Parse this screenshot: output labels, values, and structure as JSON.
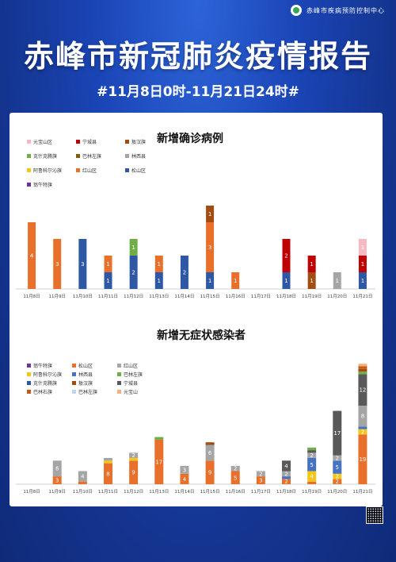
{
  "header": {
    "agency": "赤峰市疾病预防控制中心",
    "title": "赤峰市新冠肺炎疫情报告",
    "subtitle": "#11月8日0时-11月21日24时#"
  },
  "chart_data": [
    {
      "type": "bar",
      "stacked": true,
      "title": "新增确诊病例",
      "categories": [
        "11月8日",
        "11月9日",
        "11月10日",
        "11月11日",
        "11月12日",
        "11月13日",
        "11月14日",
        "11月15日",
        "11月16日",
        "11月17日",
        "11月18日",
        "11月19日",
        "11月20日",
        "11月21日"
      ],
      "legend": [
        "元宝山区",
        "宁城县",
        "敖汉旗",
        "克什克腾旗",
        "巴林左旗",
        "林西县",
        "阿鲁科尔沁旗",
        "红山区",
        "松山区",
        "翁牛特旗"
      ],
      "series": [
        {
          "name": "松山区",
          "color": "#2e58a6",
          "values": [
            0,
            0,
            3,
            1,
            2,
            1,
            2,
            1,
            0,
            0,
            1,
            0,
            0,
            1
          ]
        },
        {
          "name": "红山区",
          "color": "#e8702a",
          "values": [
            4,
            3,
            0,
            1,
            0,
            1,
            0,
            3,
            1,
            0,
            0,
            0,
            0,
            0
          ]
        },
        {
          "name": "克什克腾旗",
          "color": "#70ad47",
          "values": [
            0,
            0,
            0,
            0,
            1,
            0,
            0,
            0,
            0,
            0,
            0,
            0,
            0,
            0
          ]
        },
        {
          "name": "敖汉旗",
          "color": "#a24c12",
          "values": [
            0,
            0,
            0,
            0,
            0,
            0,
            0,
            1,
            0,
            0,
            0,
            1,
            0,
            0
          ]
        },
        {
          "name": "宁城县",
          "color": "#c00000",
          "values": [
            0,
            0,
            0,
            0,
            0,
            0,
            0,
            0,
            0,
            0,
            2,
            1,
            0,
            1
          ]
        },
        {
          "name": "林西县",
          "color": "#a5a5a5",
          "values": [
            0,
            0,
            0,
            0,
            0,
            0,
            0,
            0,
            0,
            0,
            0,
            0,
            1,
            0
          ]
        },
        {
          "name": "元宝山区",
          "color": "#f7b8c2",
          "values": [
            0,
            0,
            0,
            0,
            0,
            0,
            0,
            0,
            0,
            0,
            0,
            0,
            0,
            1
          ]
        }
      ],
      "ylim": [
        0,
        6
      ]
    },
    {
      "type": "bar",
      "stacked": true,
      "title": "新增无症状感染者",
      "categories": [
        "11月8日",
        "11月9日",
        "11月10日",
        "11月11日",
        "11月12日",
        "11月13日",
        "11月14日",
        "11月15日",
        "11月16日",
        "11月17日",
        "11月18日",
        "11月19日",
        "11月20日",
        "11月21日"
      ],
      "legend": [
        "翁牛特旗",
        "松山区",
        "红山区",
        "阿鲁科尔沁旗",
        "林西县",
        "巴林左旗",
        "克什克腾旗",
        "敖汉旗",
        "宁城县",
        "巴林右旗",
        "巴林左旗",
        "元宝山"
      ],
      "series": [
        {
          "name": "松山区",
          "color": "#e8702a",
          "values": [
            0,
            3,
            1,
            8,
            9,
            17,
            4,
            9,
            5,
            3,
            2,
            1,
            2,
            19
          ]
        },
        {
          "name": "阿鲁科尔沁旗",
          "color": "#f5c518",
          "values": [
            0,
            0,
            0,
            1,
            1,
            0,
            0,
            0,
            0,
            0,
            0,
            4,
            2,
            2
          ]
        },
        {
          "name": "林西县",
          "color": "#4472c4",
          "values": [
            0,
            0,
            0,
            0,
            0,
            0,
            0,
            0,
            0,
            0,
            1,
            5,
            5,
            1
          ]
        },
        {
          "name": "红山区",
          "color": "#a5a5a5",
          "values": [
            0,
            6,
            4,
            1,
            2,
            0,
            3,
            6,
            2,
            2,
            2,
            2,
            2,
            8
          ]
        },
        {
          "name": "宁城县",
          "color": "#595959",
          "values": [
            0,
            0,
            0,
            0,
            0,
            0,
            0,
            0,
            0,
            0,
            4,
            1,
            17,
            12
          ]
        },
        {
          "name": "巴林左旗",
          "color": "#70ad47",
          "values": [
            0,
            0,
            0,
            0,
            0,
            1,
            0,
            0,
            0,
            0,
            0,
            1,
            0,
            1
          ]
        },
        {
          "name": "敖汉旗",
          "color": "#a24c12",
          "values": [
            0,
            0,
            0,
            0,
            0,
            0,
            0,
            1,
            0,
            0,
            0,
            0,
            0,
            1
          ]
        },
        {
          "name": "巴林右旗",
          "color": "#c55a11",
          "values": [
            0,
            0,
            0,
            0,
            0,
            0,
            0,
            0,
            0,
            0,
            0,
            0,
            0,
            1
          ]
        },
        {
          "name": "元宝山",
          "color": "#f4b183",
          "values": [
            0,
            0,
            0,
            0,
            0,
            0,
            0,
            0,
            0,
            0,
            0,
            0,
            0,
            1
          ]
        }
      ],
      "ylim": [
        0,
        50
      ]
    }
  ],
  "colors": {
    "background": "#1b46b8",
    "card": "#ffffff"
  },
  "legend_colors": {
    "confirmed": [
      "#f7b8c2",
      "#c00000",
      "#a24c12",
      "#70ad47",
      "#7f6000",
      "#a5a5a5",
      "#f5c518",
      "#e8702a",
      "#2e58a6",
      "#7030a0"
    ],
    "asymptomatic": [
      "#7030a0",
      "#e8702a",
      "#a5a5a5",
      "#f5c518",
      "#4472c4",
      "#70ad47",
      "#2e58a6",
      "#a24c12",
      "#595959",
      "#c55a11",
      "#bdd7ee",
      "#f4b183"
    ]
  },
  "legend_extra_confirmed": [
    "元宝山区",
    "宁城县",
    "敖汉旗",
    "克什克腾旗",
    "巴林左旗",
    "林西县",
    "阿鲁科尔沁旗",
    "红山区",
    "松山区",
    "翁牛特旗"
  ]
}
